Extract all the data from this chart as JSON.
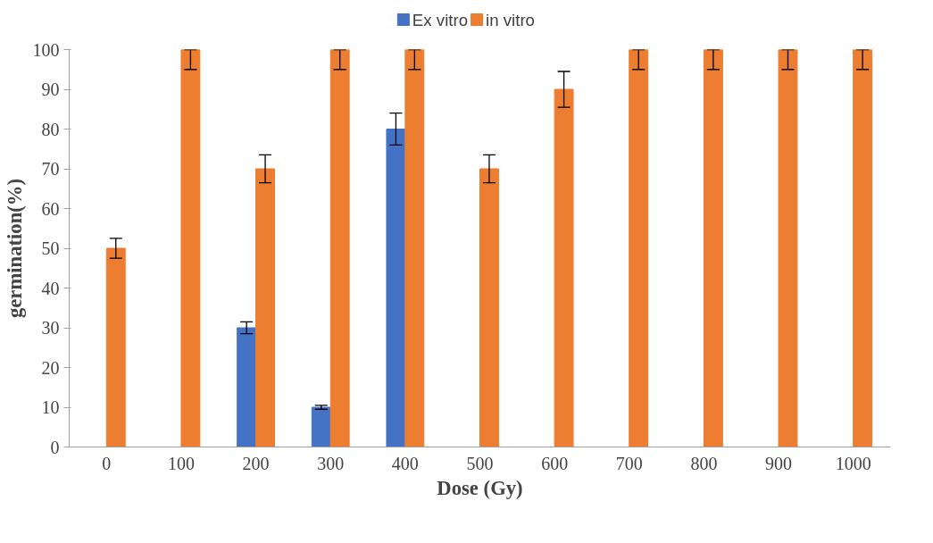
{
  "chart_data": {
    "type": "bar",
    "xlabel": "Dose (Gy)",
    "ylabel": "germination(%)",
    "categories": [
      "0",
      "100",
      "200",
      "300",
      "400",
      "500",
      "600",
      "700",
      "800",
      "900",
      "1000"
    ],
    "series": [
      {
        "name": "Ex vitro",
        "color": "#4472c4",
        "values": [
          0,
          0,
          30,
          10,
          80,
          0,
          0,
          0,
          0,
          0,
          0
        ],
        "errors": [
          null,
          null,
          1.5,
          0.5,
          4,
          null,
          null,
          null,
          null,
          null,
          null
        ]
      },
      {
        "name": "in vitro",
        "color": "#ed7d31",
        "values": [
          50,
          100,
          70,
          100,
          100,
          70,
          90,
          100,
          100,
          100,
          100
        ],
        "errors": [
          2.5,
          [
            95,
            100
          ],
          3.5,
          [
            95,
            100
          ],
          [
            95,
            100
          ],
          3.5,
          4.5,
          [
            95,
            100
          ],
          [
            95,
            100
          ],
          [
            95,
            100
          ],
          [
            95,
            100
          ]
        ]
      }
    ],
    "ylim": [
      0,
      100
    ],
    "yticks": [
      0,
      10,
      20,
      30,
      40,
      50,
      60,
      70,
      80,
      90,
      100
    ],
    "grid": false,
    "legend": "top"
  }
}
